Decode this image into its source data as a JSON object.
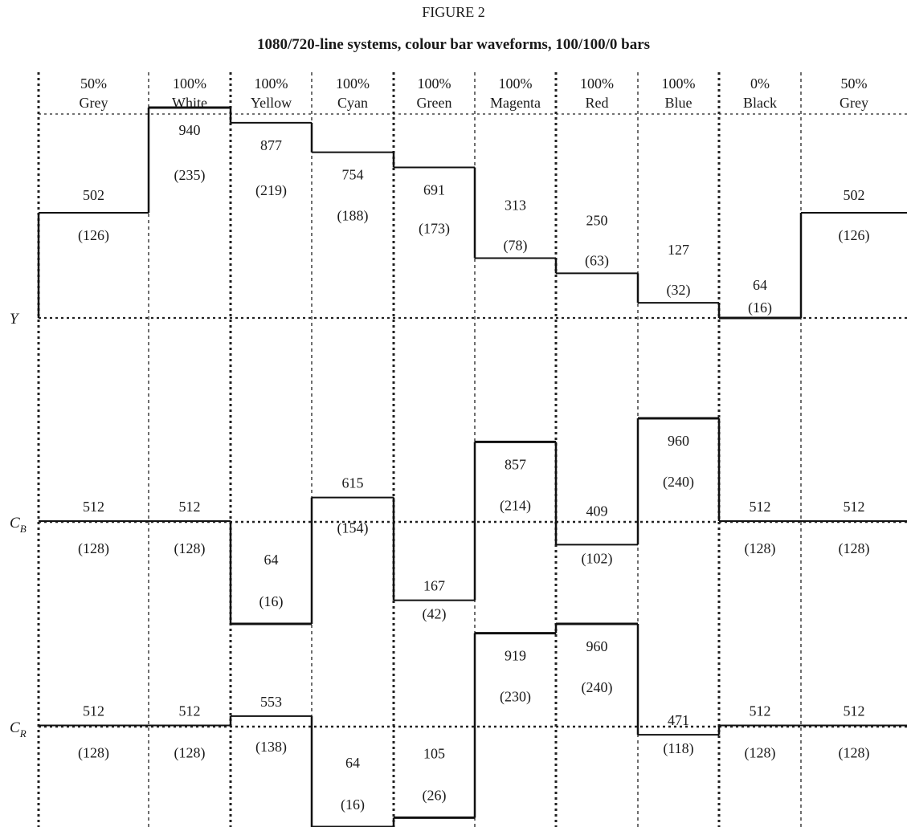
{
  "figure_label": "FIGURE 2",
  "title": "1080/720-line systems, colour bar waveforms, 100/100/0 bars",
  "bars": [
    {
      "pct": "50%",
      "name": "Grey"
    },
    {
      "pct": "100%",
      "name": "White"
    },
    {
      "pct": "100%",
      "name": "Yellow"
    },
    {
      "pct": "100%",
      "name": "Cyan"
    },
    {
      "pct": "100%",
      "name": "Green"
    },
    {
      "pct": "100%",
      "name": "Magenta"
    },
    {
      "pct": "100%",
      "name": "Red"
    },
    {
      "pct": "100%",
      "name": "Blue"
    },
    {
      "pct": "0%",
      "name": "Black"
    },
    {
      "pct": "50%",
      "name": "Grey"
    }
  ],
  "chart_data": {
    "type": "line",
    "x": [
      "Grey",
      "White",
      "Yellow",
      "Cyan",
      "Green",
      "Magenta",
      "Red",
      "Blue",
      "Black",
      "Grey"
    ],
    "series": [
      {
        "name": "Y",
        "label_main": "Y",
        "label_sub": "",
        "values_10bit": [
          502,
          940,
          877,
          754,
          691,
          313,
          250,
          127,
          64,
          502
        ],
        "values_8bit": [
          "(126)",
          "(235)",
          "(219)",
          "(188)",
          "(173)",
          "(78)",
          "(63)",
          "(32)",
          "(16)",
          "(126)"
        ]
      },
      {
        "name": "CB",
        "label_main": "C",
        "label_sub": "B",
        "values_10bit": [
          512,
          512,
          64,
          615,
          167,
          857,
          409,
          960,
          512,
          512
        ],
        "values_8bit": [
          "(128)",
          "(128)",
          "(16)",
          "(154)",
          "(42)",
          "(214)",
          "(102)",
          "(240)",
          "(128)",
          "(128)"
        ]
      },
      {
        "name": "CR",
        "label_main": "C",
        "label_sub": "R",
        "values_10bit": [
          512,
          512,
          553,
          64,
          105,
          919,
          960,
          471,
          512,
          512
        ],
        "values_8bit": [
          "(128)",
          "(128)",
          "(138)",
          "(16)",
          "(26)",
          "(230)",
          "(240)",
          "(118)",
          "(128)",
          "(128)"
        ]
      }
    ]
  }
}
